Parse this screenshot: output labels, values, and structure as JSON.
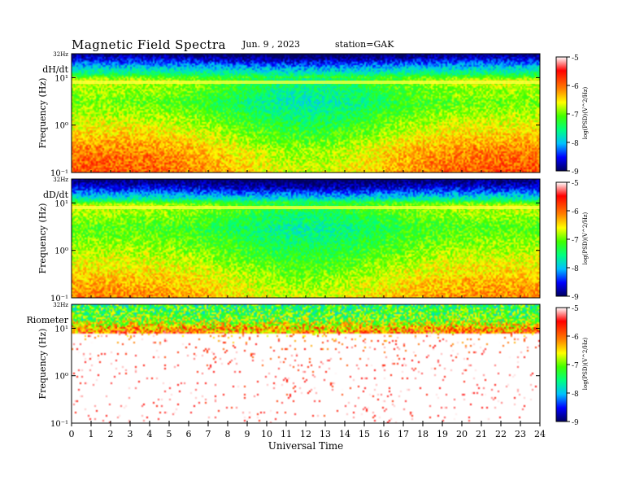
{
  "header": {
    "title": "Magnetic  Field  Spectra",
    "date": "Jun.  9  ,  2023",
    "station": "station=GAK"
  },
  "chart_data": {
    "type": "heatmap",
    "xlabel": "Universal Time",
    "x_ticks": [
      "0",
      "1",
      "2",
      "3",
      "4",
      "5",
      "6",
      "7",
      "8",
      "9",
      "10",
      "11",
      "12",
      "13",
      "14",
      "15",
      "16",
      "17",
      "18",
      "19",
      "20",
      "21",
      "22",
      "23",
      "24"
    ],
    "xlim": [
      0,
      24
    ],
    "y_scale": "log",
    "ylim": [
      0.1,
      32
    ],
    "colorbar": {
      "label": "log(PSD)(V^2/Hz)",
      "ticks": [
        "-5",
        "-6",
        "-7",
        "-8",
        "-9"
      ],
      "range": [
        -9,
        -5
      ],
      "colors": [
        "#000080",
        "#0000ff",
        "#00c0ff",
        "#00ff80",
        "#40ff00",
        "#ffff00",
        "#ff8000",
        "#ff0000",
        "#ffffff"
      ]
    },
    "panels": [
      {
        "name": "dH/dt",
        "ylabel": "Frequency  (Hz)",
        "y_top_label": "32Hz",
        "y_ticks": [
          "10¹",
          "10⁰",
          "10⁻¹"
        ],
        "profile": [
          [
            32,
            -9
          ],
          [
            20,
            -8.2
          ],
          [
            12,
            -7.4
          ],
          [
            9,
            -6.6
          ],
          [
            3,
            -6.9
          ],
          [
            1,
            -6.5
          ],
          [
            0.3,
            -6.0
          ],
          [
            0.1,
            -5.8
          ]
        ],
        "day_effect": 0.8
      },
      {
        "name": "dD/dt",
        "ylabel": "Frequency  (Hz)",
        "y_top_label": "32Hz",
        "y_ticks": [
          "10¹",
          "10⁰",
          "10⁻¹"
        ],
        "profile": [
          [
            32,
            -9
          ],
          [
            20,
            -8.5
          ],
          [
            12,
            -7.6
          ],
          [
            9,
            -6.6
          ],
          [
            3,
            -7.0
          ],
          [
            1,
            -6.7
          ],
          [
            0.3,
            -6.3
          ],
          [
            0.1,
            -6.0
          ]
        ],
        "day_effect": 0.6
      },
      {
        "name": "Riometer",
        "ylabel": "Frequency  (Hz)",
        "y_top_label": "32Hz",
        "y_ticks": [
          "10¹",
          "10⁰",
          "10⁻¹"
        ],
        "profile": [
          [
            32,
            -7.3
          ],
          [
            15,
            -6.9
          ],
          [
            10,
            -6.2
          ],
          [
            6,
            -5.5
          ],
          [
            3,
            -5.0
          ],
          [
            1,
            -4.8
          ],
          [
            0.1,
            -4.8
          ]
        ],
        "day_effect": 0.2
      }
    ]
  }
}
